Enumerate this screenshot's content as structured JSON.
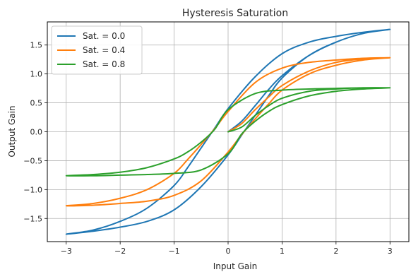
{
  "chart_data": {
    "type": "line",
    "title": "Hysteresis Saturation",
    "xlabel": "Input Gain",
    "ylabel": "Output Gain",
    "xlim": [
      -3.35,
      3.35
    ],
    "ylim": [
      -1.9,
      1.9
    ],
    "xticks": [
      -3,
      -2,
      -1,
      0,
      1,
      2,
      3
    ],
    "xtick_labels": [
      "−3",
      "−2",
      "−1",
      "0",
      "1",
      "2",
      "3"
    ],
    "yticks": [
      -1.5,
      -1.0,
      -0.5,
      0.0,
      0.5,
      1.0,
      1.5
    ],
    "ytick_labels": [
      "−1.5",
      "−1.0",
      "−0.5",
      "0.0",
      "0.5",
      "1.0",
      "1.5"
    ],
    "grid": true,
    "legend_position": "top-left",
    "series": [
      {
        "name": "Sat. = 0.0",
        "color": "#1f77b4",
        "x": [
          0,
          0.25,
          0.5,
          0.75,
          1.0,
          1.5,
          2.0,
          2.5,
          3.0,
          2.5,
          2.0,
          1.5,
          1.0,
          0.5,
          0.0,
          -0.25,
          -0.5,
          -0.75,
          -1.0,
          -1.5,
          -2.0,
          -2.5,
          -3.0,
          -2.5,
          -2.0,
          -1.5,
          -1.0,
          -0.5,
          0.0,
          0.25,
          0.5,
          0.75,
          1.0,
          1.5,
          2.0,
          2.5,
          3.0
        ],
        "y": [
          0.0,
          0.18,
          0.45,
          0.73,
          0.97,
          1.32,
          1.55,
          1.7,
          1.77,
          1.72,
          1.65,
          1.55,
          1.35,
          0.95,
          0.4,
          0.06,
          -0.28,
          -0.62,
          -0.93,
          -1.32,
          -1.55,
          -1.7,
          -1.77,
          -1.72,
          -1.65,
          -1.55,
          -1.35,
          -0.95,
          -0.4,
          -0.06,
          0.28,
          0.62,
          0.93,
          1.32,
          1.55,
          1.7,
          1.77
        ]
      },
      {
        "name": "Sat. = 0.4",
        "color": "#ff7f0e",
        "x": [
          0,
          0.25,
          0.5,
          0.75,
          1.0,
          1.5,
          2.0,
          2.5,
          3.0,
          2.5,
          2.0,
          1.5,
          1.0,
          0.5,
          0.0,
          -0.25,
          -0.5,
          -0.75,
          -1.0,
          -1.5,
          -2.0,
          -2.5,
          -3.0,
          -2.5,
          -2.0,
          -1.5,
          -1.0,
          -0.5,
          0.0,
          0.25,
          0.5,
          0.75,
          1.0,
          1.5,
          2.0,
          2.5,
          3.0
        ],
        "y": [
          0.0,
          0.14,
          0.38,
          0.6,
          0.8,
          1.05,
          1.2,
          1.26,
          1.28,
          1.27,
          1.24,
          1.2,
          1.1,
          0.85,
          0.35,
          0.05,
          -0.22,
          -0.48,
          -0.72,
          -1.0,
          -1.15,
          -1.24,
          -1.28,
          -1.27,
          -1.24,
          -1.2,
          -1.1,
          -0.85,
          -0.35,
          -0.05,
          0.22,
          0.48,
          0.72,
          1.0,
          1.15,
          1.24,
          1.28
        ]
      },
      {
        "name": "Sat. = 0.8",
        "color": "#2ca02c",
        "x": [
          0,
          0.25,
          0.5,
          0.75,
          1.0,
          1.5,
          2.0,
          2.5,
          3.0,
          2.5,
          2.0,
          1.5,
          1.0,
          0.5,
          0.0,
          -0.25,
          -0.5,
          -0.75,
          -1.0,
          -1.5,
          -2.0,
          -2.5,
          -3.0,
          -2.5,
          -2.0,
          -1.5,
          -1.0,
          -0.5,
          0.0,
          0.25,
          0.5,
          0.75,
          1.0,
          1.5,
          2.0,
          2.5,
          3.0
        ],
        "y": [
          0.0,
          0.08,
          0.28,
          0.45,
          0.58,
          0.7,
          0.74,
          0.76,
          0.76,
          0.76,
          0.75,
          0.74,
          0.72,
          0.66,
          0.38,
          0.04,
          -0.18,
          -0.35,
          -0.47,
          -0.62,
          -0.7,
          -0.74,
          -0.76,
          -0.76,
          -0.75,
          -0.74,
          -0.72,
          -0.66,
          -0.38,
          -0.04,
          0.18,
          0.35,
          0.47,
          0.62,
          0.7,
          0.74,
          0.76
        ]
      }
    ]
  }
}
